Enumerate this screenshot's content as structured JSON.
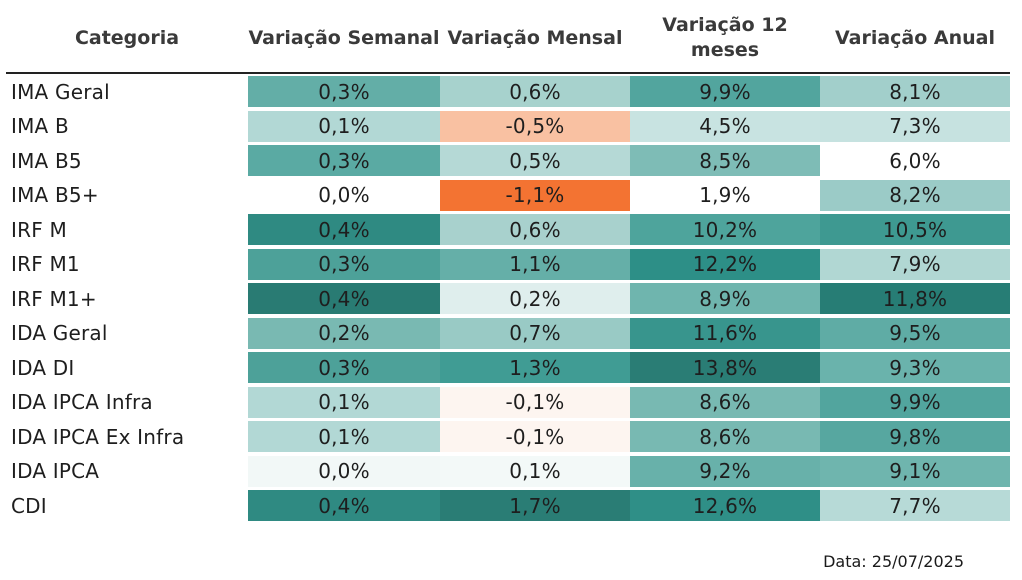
{
  "headers": [
    "Categoria",
    "Variação Semanal",
    "Variação Mensal",
    "Variação 12 meses",
    "Variação Anual"
  ],
  "chart_data": {
    "type": "table",
    "columns": [
      "Categoria",
      "Variação Semanal",
      "Variação Mensal",
      "Variação 12 meses",
      "Variação Anual"
    ],
    "rows": [
      {
        "label": "IMA Geral",
        "values": [
          "0,3%",
          "0,6%",
          "9,9%",
          "8,1%"
        ],
        "colors": [
          "#63aea7",
          "#a7d2cd",
          "#52a59e",
          "#a2cfcb"
        ]
      },
      {
        "label": "IMA B",
        "values": [
          "0,1%",
          "-0,5%",
          "4,5%",
          "7,3%"
        ],
        "colors": [
          "#b2d8d5",
          "#f9c1a2",
          "#c8e3e1",
          "#c6e2e0"
        ]
      },
      {
        "label": "IMA B5",
        "values": [
          "0,3%",
          "0,5%",
          "8,5%",
          "6,0%"
        ],
        "colors": [
          "#5aaaa3",
          "#b5d9d6",
          "#7ebcb6",
          "#ffffff"
        ]
      },
      {
        "label": "IMA B5+",
        "values": [
          "0,0%",
          "-1,1%",
          "1,9%",
          "8,2%"
        ],
        "colors": [
          "#ffffff",
          "#f37332",
          "#ffffff",
          "#9bcbc7"
        ]
      },
      {
        "label": "IRF M",
        "values": [
          "0,4%",
          "0,6%",
          "10,2%",
          "10,5%"
        ],
        "colors": [
          "#2f8a82",
          "#a8d1cd",
          "#4ea49c",
          "#3e9991"
        ]
      },
      {
        "label": "IRF M1",
        "values": [
          "0,3%",
          "1,1%",
          "12,2%",
          "7,9%"
        ],
        "colors": [
          "#4da199",
          "#65afa8",
          "#2d8f87",
          "#b1d7d3"
        ]
      },
      {
        "label": "IRF M1+",
        "values": [
          "0,4%",
          "0,2%",
          "8,9%",
          "11,8%"
        ],
        "colors": [
          "#297b73",
          "#dfeeed",
          "#6fb5ae",
          "#277d75"
        ]
      },
      {
        "label": "IDA Geral",
        "values": [
          "0,2%",
          "0,7%",
          "11,6%",
          "9,5%"
        ],
        "colors": [
          "#79b9b2",
          "#99cac5",
          "#38958d",
          "#5faca5"
        ]
      },
      {
        "label": "IDA DI",
        "values": [
          "0,3%",
          "1,3%",
          "13,8%",
          "9,3%"
        ],
        "colors": [
          "#4da199",
          "#409c94",
          "#2a7d75",
          "#6ab3ac"
        ]
      },
      {
        "label": "IDA IPCA Infra",
        "values": [
          "0,1%",
          "-0,1%",
          "8,6%",
          "9,9%"
        ],
        "colors": [
          "#b2d8d5",
          "#fdf5f0",
          "#78b9b2",
          "#52a59e"
        ]
      },
      {
        "label": "IDA IPCA Ex Infra",
        "values": [
          "0,1%",
          "-0,1%",
          "8,6%",
          "9,8%"
        ],
        "colors": [
          "#b2d8d5",
          "#fdf5f0",
          "#78b9b2",
          "#57a7a0"
        ]
      },
      {
        "label": "IDA IPCA",
        "values": [
          "0,0%",
          "0,1%",
          "9,2%",
          "9,1%"
        ],
        "colors": [
          "#f2f8f7",
          "#f3f9f8",
          "#68b1aa",
          "#6fb5ae"
        ]
      },
      {
        "label": "CDI",
        "values": [
          "0,4%",
          "1,7%",
          "12,6%",
          "7,7%"
        ],
        "colors": [
          "#2f8a82",
          "#2a7d75",
          "#2f8f87",
          "#b7dad7"
        ]
      }
    ]
  },
  "date_note": "Data: 25/07/2025"
}
